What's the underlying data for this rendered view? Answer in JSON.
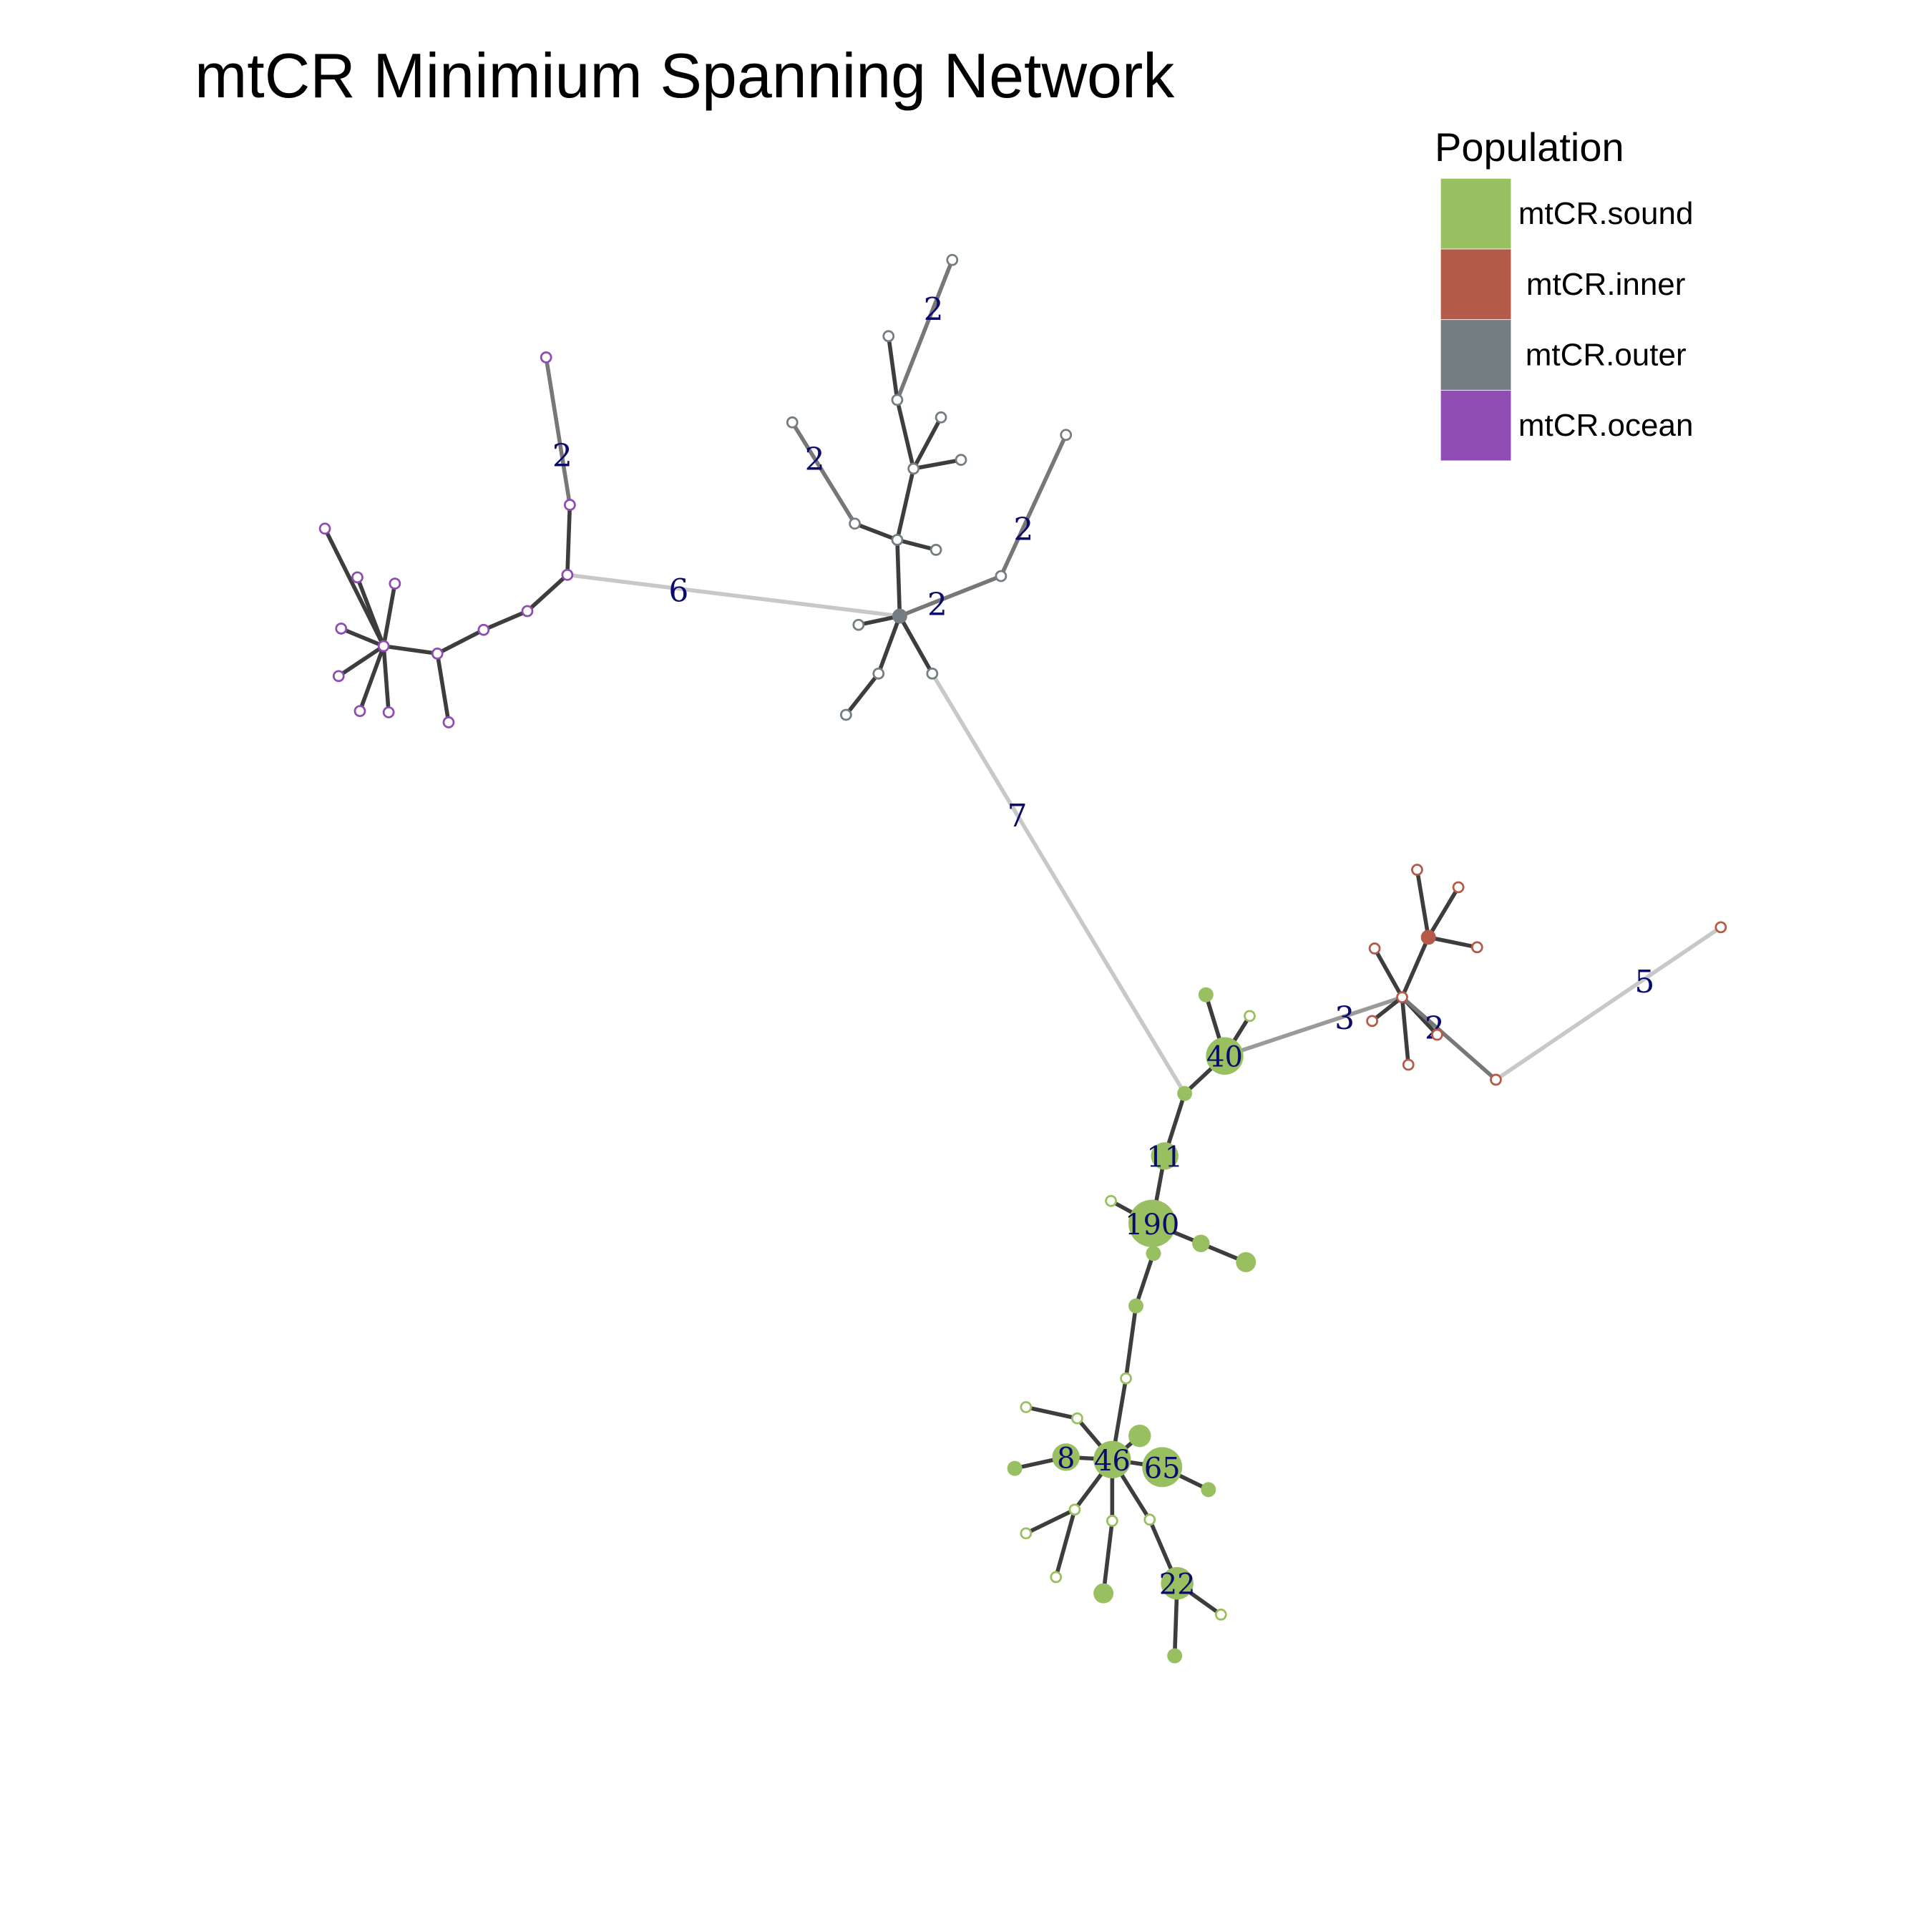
{
  "title": "mtCR Minimium Spanning Network",
  "legend": {
    "title": "Population",
    "items": [
      {
        "label": "mtCR.sound",
        "color": "#98c060"
      },
      {
        "label": "mtCR.inner",
        "color": "#b45a48"
      },
      {
        "label": "mtCR.outer",
        "color": "#737d82"
      },
      {
        "label": "mtCR.ocean",
        "color": "#8f4db3"
      }
    ]
  },
  "colors": {
    "sound": "#98c060",
    "inner": "#b45a48",
    "outer": "#737d82",
    "ocean": "#8f4db3"
  },
  "edge_labels": [
    "2",
    "2",
    "2",
    "2",
    "2",
    "6",
    "7",
    "3",
    "2",
    "5"
  ],
  "node_labels": [
    "40",
    "11",
    "190",
    "8",
    "46",
    "65",
    "22"
  ]
}
